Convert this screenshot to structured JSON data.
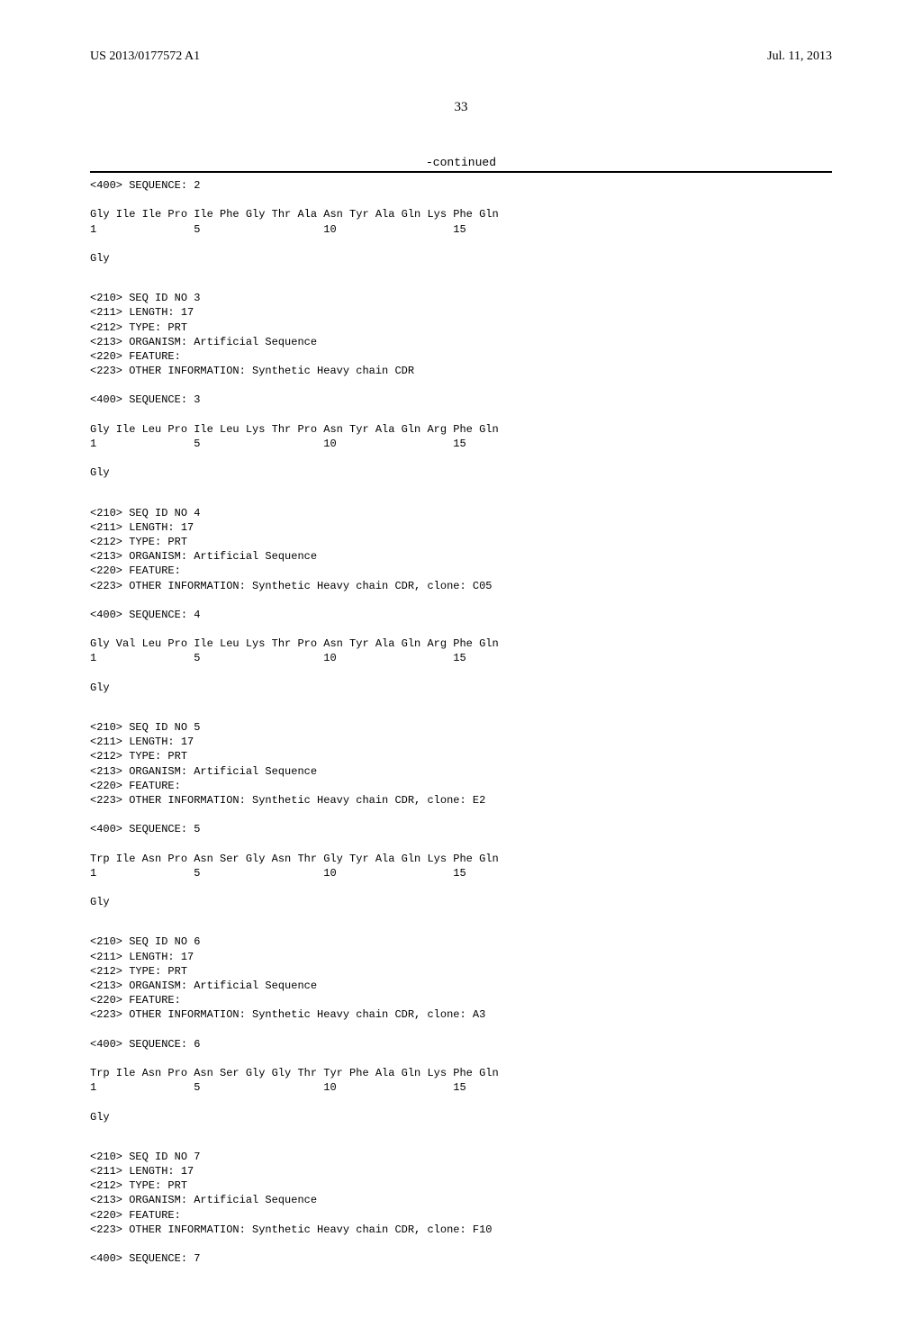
{
  "header": {
    "pub_number": "US 2013/0177572 A1",
    "pub_date": "Jul. 11, 2013"
  },
  "page_number": "33",
  "continued_label": "-continued",
  "sequences": [
    {
      "pre_lines": [
        "<400> SEQUENCE: 2"
      ],
      "seq_line1": "Gly Ile Ile Pro Ile Phe Gly Thr Ala Asn Tyr Ala Gln Lys Phe Gln",
      "seq_line2": "1               5                   10                  15",
      "tail": "Gly"
    },
    {
      "pre_lines": [
        "<210> SEQ ID NO 3",
        "<211> LENGTH: 17",
        "<212> TYPE: PRT",
        "<213> ORGANISM: Artificial Sequence",
        "<220> FEATURE:",
        "<223> OTHER INFORMATION: Synthetic Heavy chain CDR",
        "",
        "<400> SEQUENCE: 3"
      ],
      "seq_line1": "Gly Ile Leu Pro Ile Leu Lys Thr Pro Asn Tyr Ala Gln Arg Phe Gln",
      "seq_line2": "1               5                   10                  15",
      "tail": "Gly"
    },
    {
      "pre_lines": [
        "<210> SEQ ID NO 4",
        "<211> LENGTH: 17",
        "<212> TYPE: PRT",
        "<213> ORGANISM: Artificial Sequence",
        "<220> FEATURE:",
        "<223> OTHER INFORMATION: Synthetic Heavy chain CDR, clone: C05",
        "",
        "<400> SEQUENCE: 4"
      ],
      "seq_line1": "Gly Val Leu Pro Ile Leu Lys Thr Pro Asn Tyr Ala Gln Arg Phe Gln",
      "seq_line2": "1               5                   10                  15",
      "tail": "Gly"
    },
    {
      "pre_lines": [
        "<210> SEQ ID NO 5",
        "<211> LENGTH: 17",
        "<212> TYPE: PRT",
        "<213> ORGANISM: Artificial Sequence",
        "<220> FEATURE:",
        "<223> OTHER INFORMATION: Synthetic Heavy chain CDR, clone: E2",
        "",
        "<400> SEQUENCE: 5"
      ],
      "seq_line1": "Trp Ile Asn Pro Asn Ser Gly Asn Thr Gly Tyr Ala Gln Lys Phe Gln",
      "seq_line2": "1               5                   10                  15",
      "tail": "Gly"
    },
    {
      "pre_lines": [
        "<210> SEQ ID NO 6",
        "<211> LENGTH: 17",
        "<212> TYPE: PRT",
        "<213> ORGANISM: Artificial Sequence",
        "<220> FEATURE:",
        "<223> OTHER INFORMATION: Synthetic Heavy chain CDR, clone: A3",
        "",
        "<400> SEQUENCE: 6"
      ],
      "seq_line1": "Trp Ile Asn Pro Asn Ser Gly Gly Thr Tyr Phe Ala Gln Lys Phe Gln",
      "seq_line2": "1               5                   10                  15",
      "tail": "Gly"
    },
    {
      "pre_lines": [
        "<210> SEQ ID NO 7",
        "<211> LENGTH: 17",
        "<212> TYPE: PRT",
        "<213> ORGANISM: Artificial Sequence",
        "<220> FEATURE:",
        "<223> OTHER INFORMATION: Synthetic Heavy chain CDR, clone: F10",
        "",
        "<400> SEQUENCE: 7"
      ],
      "seq_line1": "",
      "seq_line2": "",
      "tail": ""
    }
  ]
}
